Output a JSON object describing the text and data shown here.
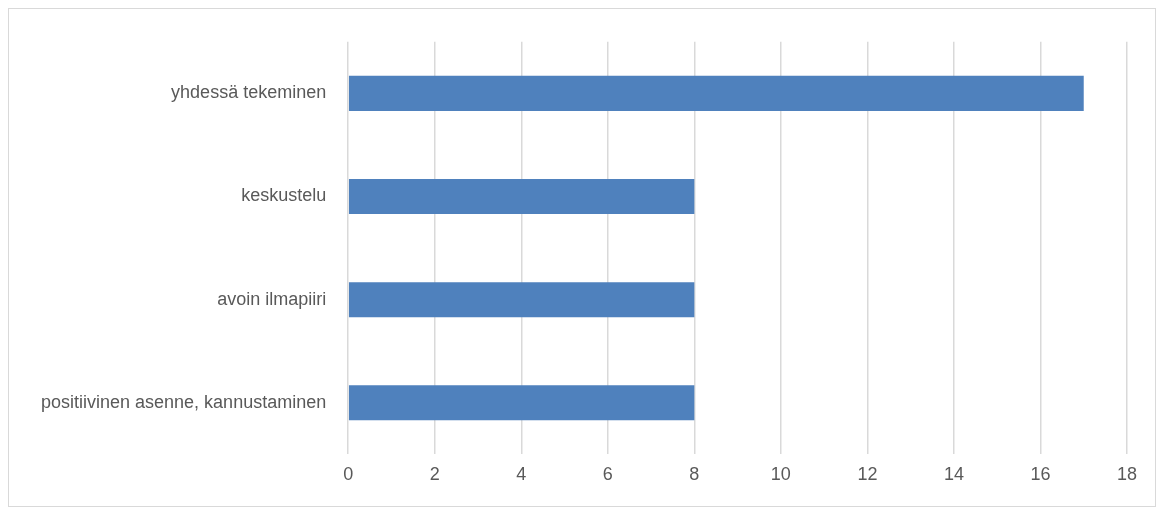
{
  "chart_data": {
    "type": "bar",
    "orientation": "horizontal",
    "categories": [
      "yhdessä tekeminen",
      "keskustelu",
      "avoin ilmapiiri",
      "positiivinen asenne, kannustaminen"
    ],
    "values": [
      17,
      8,
      8,
      8
    ],
    "color": "#4f81bd",
    "xlim": [
      0,
      18
    ],
    "xticks": [
      0,
      2,
      4,
      6,
      8,
      10,
      12,
      14,
      16,
      18
    ],
    "grid": "x",
    "legend": false
  }
}
